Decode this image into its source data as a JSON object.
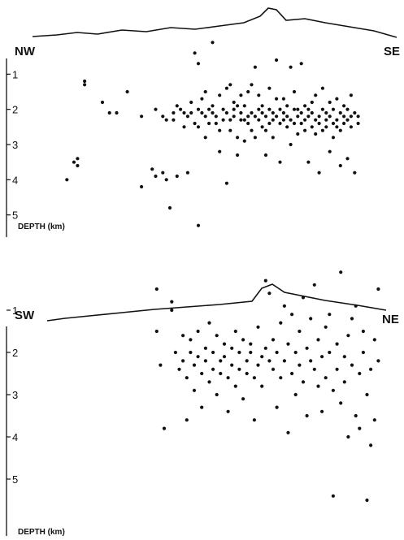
{
  "chart_data": [
    {
      "type": "scatter",
      "title": "",
      "end_labels": {
        "left": "NW",
        "right": "SE"
      },
      "ylabel": "DEPTH (km)",
      "ylim": [
        0,
        6
      ],
      "xlim": [
        0,
        100
      ],
      "yticks": [
        "1",
        "2",
        "3",
        "4",
        "5"
      ],
      "points": [
        [
          17,
          4.0
        ],
        [
          19,
          3.5
        ],
        [
          20,
          3.4
        ],
        [
          20,
          3.6
        ],
        [
          22,
          1.2
        ],
        [
          22,
          1.3
        ],
        [
          27,
          1.8
        ],
        [
          29,
          2.1
        ],
        [
          31,
          2.1
        ],
        [
          34,
          1.5
        ],
        [
          38,
          2.2
        ],
        [
          38,
          4.2
        ],
        [
          41,
          3.7
        ],
        [
          42,
          2.0
        ],
        [
          42,
          3.9
        ],
        [
          44,
          3.8
        ],
        [
          44,
          2.2
        ],
        [
          45,
          4.0
        ],
        [
          45,
          2.3
        ],
        [
          46,
          4.8
        ],
        [
          47,
          2.1
        ],
        [
          47,
          2.3
        ],
        [
          48,
          1.9
        ],
        [
          48,
          3.9
        ],
        [
          49,
          2.0
        ],
        [
          50,
          2.5
        ],
        [
          50,
          2.1
        ],
        [
          51,
          2.2
        ],
        [
          51,
          3.8
        ],
        [
          52,
          2.1
        ],
        [
          52,
          1.8
        ],
        [
          53,
          2.4
        ],
        [
          53,
          0.4
        ],
        [
          54,
          0.7
        ],
        [
          54,
          2.5
        ],
        [
          54,
          5.3
        ],
        [
          54,
          2.0
        ],
        [
          55,
          2.1
        ],
        [
          55,
          1.7
        ],
        [
          56,
          2.2
        ],
        [
          56,
          2.8
        ],
        [
          56,
          1.5
        ],
        [
          57,
          2.4
        ],
        [
          57,
          2.0
        ],
        [
          58,
          1.9
        ],
        [
          58,
          2.1
        ],
        [
          58,
          0.1
        ],
        [
          59,
          2.4
        ],
        [
          59,
          2.2
        ],
        [
          60,
          2.6
        ],
        [
          60,
          1.6
        ],
        [
          60,
          3.2
        ],
        [
          61,
          2.3
        ],
        [
          61,
          2.0
        ],
        [
          62,
          4.1
        ],
        [
          62,
          2.1
        ],
        [
          62,
          1.4
        ],
        [
          63,
          2.3
        ],
        [
          63,
          2.6
        ],
        [
          63,
          1.3
        ],
        [
          64,
          2.0
        ],
        [
          64,
          1.8
        ],
        [
          64,
          2.2
        ],
        [
          65,
          2.8
        ],
        [
          65,
          1.9
        ],
        [
          65,
          3.3
        ],
        [
          66,
          2.3
        ],
        [
          66,
          2.1
        ],
        [
          66,
          1.6
        ],
        [
          67,
          2.9
        ],
        [
          67,
          2.3
        ],
        [
          67,
          1.9
        ],
        [
          68,
          2.4
        ],
        [
          68,
          2.2
        ],
        [
          68,
          1.5
        ],
        [
          69,
          2.1
        ],
        [
          69,
          2.6
        ],
        [
          69,
          1.3
        ],
        [
          70,
          2.2
        ],
        [
          70,
          2.8
        ],
        [
          70,
          0.8
        ],
        [
          71,
          2.3
        ],
        [
          71,
          2.0
        ],
        [
          71,
          1.6
        ],
        [
          72,
          2.5
        ],
        [
          72,
          1.9
        ],
        [
          72,
          2.1
        ],
        [
          73,
          2.2
        ],
        [
          73,
          2.6
        ],
        [
          73,
          3.3
        ],
        [
          74,
          2.4
        ],
        [
          74,
          2.0
        ],
        [
          74,
          1.4
        ],
        [
          75,
          2.1
        ],
        [
          75,
          2.3
        ],
        [
          75,
          2.8
        ],
        [
          76,
          2.2
        ],
        [
          76,
          1.7
        ],
        [
          76,
          0.6
        ],
        [
          77,
          2.4
        ],
        [
          77,
          2.0
        ],
        [
          77,
          3.5
        ],
        [
          78,
          2.1
        ],
        [
          78,
          2.3
        ],
        [
          78,
          1.7
        ],
        [
          79,
          2.2
        ],
        [
          79,
          2.5
        ],
        [
          79,
          1.9
        ],
        [
          80,
          2.3
        ],
        [
          80,
          0.8
        ],
        [
          80,
          3.0
        ],
        [
          81,
          2.0
        ],
        [
          81,
          2.4
        ],
        [
          81,
          1.5
        ],
        [
          82,
          2.2
        ],
        [
          82,
          2.7
        ],
        [
          82,
          2.0
        ],
        [
          83,
          2.4
        ],
        [
          83,
          2.1
        ],
        [
          83,
          0.7
        ],
        [
          84,
          2.3
        ],
        [
          84,
          1.9
        ],
        [
          84,
          2.6
        ],
        [
          85,
          2.2
        ],
        [
          85,
          2.0
        ],
        [
          85,
          3.5
        ],
        [
          86,
          2.5
        ],
        [
          86,
          2.1
        ],
        [
          86,
          1.8
        ],
        [
          87,
          2.3
        ],
        [
          87,
          2.7
        ],
        [
          87,
          1.6
        ],
        [
          88,
          2.2
        ],
        [
          88,
          2.4
        ],
        [
          88,
          3.8
        ],
        [
          89,
          2.0
        ],
        [
          89,
          2.6
        ],
        [
          89,
          1.4
        ],
        [
          90,
          2.3
        ],
        [
          90,
          2.1
        ],
        [
          90,
          2.5
        ],
        [
          91,
          2.2
        ],
        [
          91,
          1.8
        ],
        [
          91,
          3.2
        ],
        [
          92,
          2.4
        ],
        [
          92,
          2.0
        ],
        [
          92,
          2.8
        ],
        [
          93,
          2.3
        ],
        [
          93,
          1.7
        ],
        [
          93,
          2.5
        ],
        [
          94,
          2.1
        ],
        [
          94,
          2.6
        ],
        [
          94,
          3.6
        ],
        [
          95,
          2.2
        ],
        [
          95,
          2.4
        ],
        [
          95,
          1.9
        ],
        [
          96,
          2.3
        ],
        [
          96,
          2.0
        ],
        [
          96,
          3.4
        ],
        [
          97,
          2.5
        ],
        [
          97,
          2.2
        ],
        [
          97,
          1.6
        ],
        [
          98,
          2.1
        ],
        [
          98,
          3.8
        ],
        [
          99,
          2.4
        ],
        [
          99,
          2.2
        ]
      ]
    },
    {
      "type": "scatter",
      "title": "",
      "end_labels": {
        "left": "SW",
        "right": "NE"
      },
      "ylabel": "DEPTH (km)",
      "ylim": [
        0,
        6
      ],
      "xlim": [
        0,
        100
      ],
      "yticks": [
        "1",
        "2",
        "3",
        "4",
        "5"
      ],
      "points": [
        [
          40,
          0.5
        ],
        [
          40,
          1.5
        ],
        [
          41,
          2.3
        ],
        [
          42,
          3.8
        ],
        [
          44,
          0.8
        ],
        [
          44,
          1.0
        ],
        [
          45,
          2.0
        ],
        [
          46,
          2.4
        ],
        [
          47,
          1.6
        ],
        [
          47,
          2.2
        ],
        [
          48,
          2.6
        ],
        [
          48,
          3.6
        ],
        [
          49,
          2.0
        ],
        [
          49,
          1.7
        ],
        [
          50,
          2.3
        ],
        [
          50,
          2.9
        ],
        [
          51,
          1.5
        ],
        [
          51,
          2.1
        ],
        [
          52,
          2.5
        ],
        [
          52,
          3.3
        ],
        [
          53,
          1.9
        ],
        [
          53,
          2.2
        ],
        [
          54,
          1.3
        ],
        [
          54,
          2.7
        ],
        [
          55,
          2.0
        ],
        [
          55,
          2.4
        ],
        [
          56,
          1.6
        ],
        [
          56,
          3.0
        ],
        [
          57,
          2.2
        ],
        [
          57,
          2.5
        ],
        [
          58,
          1.8
        ],
        [
          58,
          2.1
        ],
        [
          59,
          2.6
        ],
        [
          59,
          3.4
        ],
        [
          60,
          1.9
        ],
        [
          60,
          2.3
        ],
        [
          61,
          1.5
        ],
        [
          61,
          2.8
        ],
        [
          62,
          2.0
        ],
        [
          62,
          2.4
        ],
        [
          63,
          1.7
        ],
        [
          63,
          3.1
        ],
        [
          64,
          2.2
        ],
        [
          64,
          2.5
        ],
        [
          65,
          1.8
        ],
        [
          65,
          2.0
        ],
        [
          66,
          2.6
        ],
        [
          66,
          3.6
        ],
        [
          67,
          1.4
        ],
        [
          67,
          2.3
        ],
        [
          68,
          2.1
        ],
        [
          68,
          2.8
        ],
        [
          69,
          1.9
        ],
        [
          69,
          0.3
        ],
        [
          70,
          2.2
        ],
        [
          70,
          0.6
        ],
        [
          71,
          2.4
        ],
        [
          71,
          1.7
        ],
        [
          72,
          2.0
        ],
        [
          72,
          3.3
        ],
        [
          73,
          1.3
        ],
        [
          73,
          2.6
        ],
        [
          74,
          2.2
        ],
        [
          74,
          0.9
        ],
        [
          75,
          1.8
        ],
        [
          75,
          3.9
        ],
        [
          76,
          2.5
        ],
        [
          76,
          1.1
        ],
        [
          77,
          2.0
        ],
        [
          77,
          3.0
        ],
        [
          78,
          1.5
        ],
        [
          78,
          2.3
        ],
        [
          79,
          2.7
        ],
        [
          79,
          0.7
        ],
        [
          80,
          1.9
        ],
        [
          80,
          3.5
        ],
        [
          81,
          2.2
        ],
        [
          81,
          1.2
        ],
        [
          82,
          2.4
        ],
        [
          82,
          0.4
        ],
        [
          83,
          1.7
        ],
        [
          83,
          2.8
        ],
        [
          84,
          2.1
        ],
        [
          84,
          3.4
        ],
        [
          85,
          1.4
        ],
        [
          85,
          2.6
        ],
        [
          86,
          2.0
        ],
        [
          86,
          1.1
        ],
        [
          87,
          2.9
        ],
        [
          87,
          5.4
        ],
        [
          88,
          1.8
        ],
        [
          88,
          2.4
        ],
        [
          89,
          3.2
        ],
        [
          89,
          0.1
        ],
        [
          90,
          2.1
        ],
        [
          90,
          2.7
        ],
        [
          91,
          1.6
        ],
        [
          91,
          4.0
        ],
        [
          92,
          2.3
        ],
        [
          92,
          1.2
        ],
        [
          93,
          3.5
        ],
        [
          93,
          0.9
        ],
        [
          94,
          2.5
        ],
        [
          94,
          3.8
        ],
        [
          95,
          2.0
        ],
        [
          95,
          1.5
        ],
        [
          96,
          3.0
        ],
        [
          96,
          5.5
        ],
        [
          97,
          2.4
        ],
        [
          97,
          4.2
        ],
        [
          98,
          1.7
        ],
        [
          98,
          3.6
        ],
        [
          99,
          2.2
        ],
        [
          99,
          0.5
        ]
      ]
    }
  ]
}
